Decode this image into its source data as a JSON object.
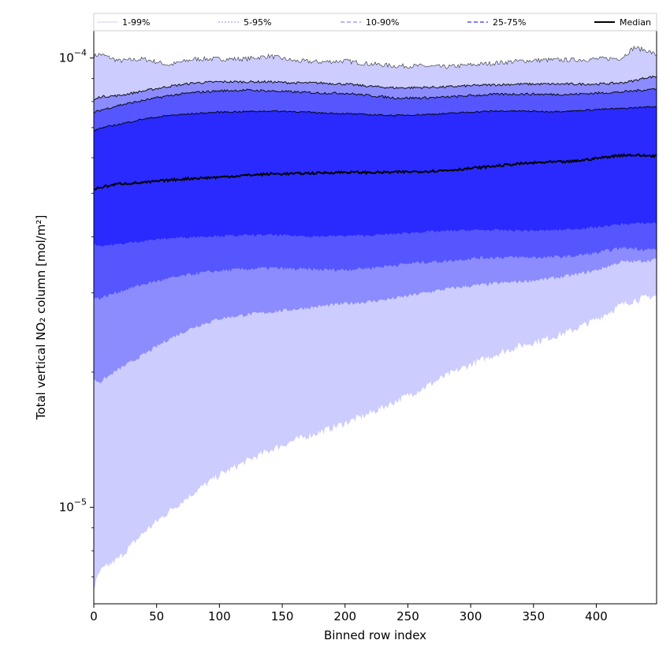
{
  "chart_data": {
    "type": "area",
    "xlabel": "Binned row index",
    "ylabel": "Total vertical NO₂ column [mol/m²]",
    "xlim": [
      0,
      448
    ],
    "ylim": [
      6.1e-06,
      0.000115
    ],
    "yscale": "log",
    "x_ticks": [
      0,
      50,
      100,
      150,
      200,
      250,
      300,
      350,
      400
    ],
    "y_ticks": [
      {
        "value": 1e-05,
        "base": "10",
        "exp": "−5"
      },
      {
        "value": 0.0001,
        "base": "10",
        "exp": "−4"
      }
    ],
    "legend_placement": "top, above plot",
    "legend": [
      "1-99%",
      "5-95%",
      "10-90%",
      "25-75%",
      "Median"
    ],
    "colors": {
      "band_1_99": "#ccccff",
      "band_5_95": "#8c8cff",
      "band_10_90": "#5656ff",
      "band_25_75": "#2a2aff",
      "median": "#000000"
    },
    "x": [
      0,
      5,
      20,
      40,
      60,
      80,
      100,
      120,
      140,
      160,
      180,
      200,
      220,
      240,
      260,
      280,
      300,
      320,
      340,
      360,
      380,
      400,
      420,
      430,
      440,
      448
    ],
    "series": [
      {
        "name": "1-99%",
        "kind": "band",
        "upper": [
          0.000101,
          0.000102,
          9.85e-05,
          9.95e-05,
          9.65e-05,
          9.95e-05,
          9.95e-05,
          9.95e-05,
          0.000101,
          9.85e-05,
          9.8e-05,
          9.85e-05,
          9.7e-05,
          9.6e-05,
          9.6e-05,
          9.55e-05,
          9.65e-05,
          9.75e-05,
          9.85e-05,
          9.9e-05,
          9.9e-05,
          9.95e-05,
          0.0001,
          0.0001055,
          0.000104,
          0.0001015
        ],
        "lower": [
          6.6e-06,
          7.2e-06,
          7.7e-06,
          8.8e-06,
          9.8e-06,
          1.08e-05,
          1.18e-05,
          1.26e-05,
          1.34e-05,
          1.41e-05,
          1.47e-05,
          1.54e-05,
          1.62e-05,
          1.72e-05,
          1.83e-05,
          1.96e-05,
          2.08e-05,
          2.19e-05,
          2.29e-05,
          2.37e-05,
          2.47e-05,
          2.62e-05,
          2.82e-05,
          2.89e-05,
          2.93e-05,
          2.96e-05
        ]
      },
      {
        "name": "5-95%",
        "kind": "band",
        "upper": [
          8.05e-05,
          8.2e-05,
          8.25e-05,
          8.45e-05,
          8.65e-05,
          8.8e-05,
          8.85e-05,
          8.85e-05,
          8.85e-05,
          8.8e-05,
          8.8e-05,
          8.75e-05,
          8.65e-05,
          8.58e-05,
          8.6e-05,
          8.62e-05,
          8.68e-05,
          8.72e-05,
          8.75e-05,
          8.75e-05,
          8.75e-05,
          8.75e-05,
          8.8e-05,
          8.9e-05,
          9.05e-05,
          9.1e-05
        ],
        "lower": [
          1.92e-05,
          1.9e-05,
          2.03e-05,
          2.19e-05,
          2.37e-05,
          2.52e-05,
          2.63e-05,
          2.68e-05,
          2.72e-05,
          2.76e-05,
          2.8e-05,
          2.84e-05,
          2.87e-05,
          2.92e-05,
          2.99e-05,
          3.06e-05,
          3.11e-05,
          3.15e-05,
          3.18e-05,
          3.22e-05,
          3.28e-05,
          3.37e-05,
          3.52e-05,
          3.52e-05,
          3.54e-05,
          3.56e-05
        ]
      },
      {
        "name": "10-90%",
        "kind": "band",
        "upper": [
          7.55e-05,
          7.65e-05,
          7.85e-05,
          8.05e-05,
          8.25e-05,
          8.38e-05,
          8.45e-05,
          8.48e-05,
          8.45e-05,
          8.4e-05,
          8.36e-05,
          8.35e-05,
          8.25e-05,
          8.15e-05,
          8.15e-05,
          8.18e-05,
          8.25e-05,
          8.3e-05,
          8.32e-05,
          8.3e-05,
          8.3e-05,
          8.35e-05,
          8.4e-05,
          8.45e-05,
          8.5e-05,
          8.55e-05
        ],
        "lower": [
          2.92e-05,
          2.92e-05,
          3.02e-05,
          3.14e-05,
          3.23e-05,
          3.31e-05,
          3.36e-05,
          3.39e-05,
          3.41e-05,
          3.39e-05,
          3.38e-05,
          3.38e-05,
          3.41e-05,
          3.46e-05,
          3.51e-05,
          3.53e-05,
          3.58e-05,
          3.6e-05,
          3.6e-05,
          3.6e-05,
          3.62e-05,
          3.68e-05,
          3.78e-05,
          3.77e-05,
          3.75e-05,
          3.75e-05
        ]
      },
      {
        "name": "25-75%",
        "kind": "band",
        "upper": [
          6.88e-05,
          6.98e-05,
          7.12e-05,
          7.32e-05,
          7.45e-05,
          7.52e-05,
          7.58e-05,
          7.6e-05,
          7.62e-05,
          7.6e-05,
          7.55e-05,
          7.52e-05,
          7.48e-05,
          7.45e-05,
          7.48e-05,
          7.52e-05,
          7.58e-05,
          7.62e-05,
          7.62e-05,
          7.6e-05,
          7.62e-05,
          7.68e-05,
          7.72e-05,
          7.75e-05,
          7.78e-05,
          7.8e-05
        ],
        "lower": [
          3.85e-05,
          3.82e-05,
          3.85e-05,
          3.92e-05,
          3.97e-05,
          4e-05,
          4.02e-05,
          4.03e-05,
          4.04e-05,
          4.02e-05,
          4.01e-05,
          4.02e-05,
          4.03e-05,
          4.06e-05,
          4.1e-05,
          4.12e-05,
          4.14e-05,
          4.14e-05,
          4.13e-05,
          4.13e-05,
          4.16e-05,
          4.2e-05,
          4.27e-05,
          4.28e-05,
          4.29e-05,
          4.3e-05
        ]
      },
      {
        "name": "Median",
        "kind": "line",
        "values": [
          5.1e-05,
          5.15e-05,
          5.25e-05,
          5.28e-05,
          5.35e-05,
          5.4e-05,
          5.43e-05,
          5.48e-05,
          5.52e-05,
          5.53e-05,
          5.55e-05,
          5.57e-05,
          5.56e-05,
          5.57e-05,
          5.59e-05,
          5.62e-05,
          5.68e-05,
          5.75e-05,
          5.82e-05,
          5.86e-05,
          5.88e-05,
          5.98e-05,
          6.08e-05,
          6.08e-05,
          6.06e-05,
          6.06e-05
        ]
      }
    ]
  }
}
